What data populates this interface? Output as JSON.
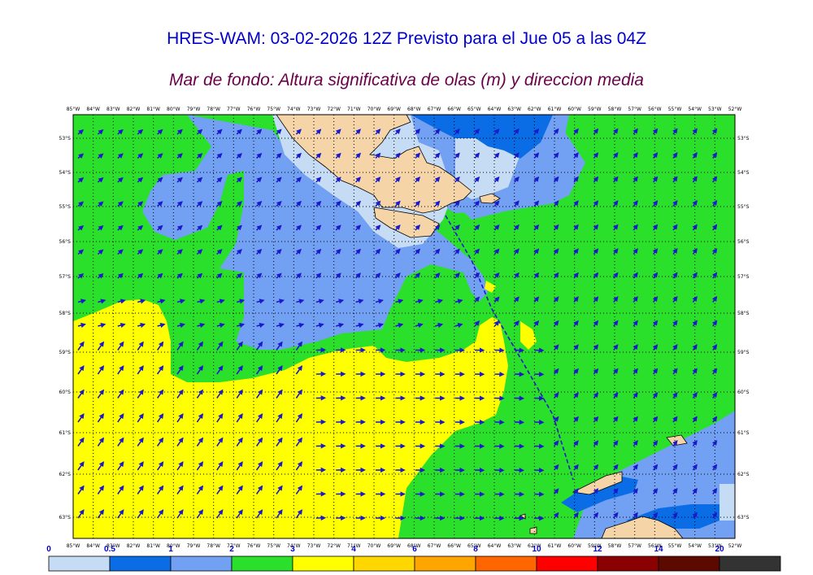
{
  "header": {
    "title": "HRES-WAM: 03-02-2026 12Z Previsto para el Jue 05 a las 04Z",
    "subtitle": "Mar de fondo: Altura significativa de olas (m) y direccion media"
  },
  "map": {
    "lon_labels": [
      "85°W",
      "84°W",
      "83°W",
      "82°W",
      "81°W",
      "80°W",
      "79°W",
      "78°W",
      "77°W",
      "76°W",
      "75°W",
      "74°W",
      "73°W",
      "72°W",
      "71°W",
      "70°W",
      "69°W",
      "68°W",
      "67°W",
      "66°W",
      "65°W",
      "64°W",
      "63°W",
      "62°W",
      "61°W",
      "60°W",
      "59°W",
      "58°W",
      "57°W",
      "56°W",
      "55°W",
      "54°W",
      "53°W",
      "52°W"
    ],
    "lat_labels": [
      "53°S",
      "54°S",
      "55°S",
      "56°S",
      "57°S",
      "58°S",
      "59°S",
      "60°S",
      "61°S",
      "62°S",
      "63°S"
    ],
    "colors": {
      "light_blue": "#c6dcf5",
      "blue": "#0a6de6",
      "mid_blue": "#72a0f2",
      "green": "#2be02b",
      "yellow": "#ffff00",
      "land": "#f5d5a8",
      "arrow": "#1a1acc",
      "route": "#1a1acc"
    }
  },
  "colorbar": {
    "labels": [
      "0",
      "0.5",
      "1",
      "2",
      "3",
      "4",
      "6",
      "8",
      "10",
      "12",
      "14",
      "20"
    ],
    "colors": [
      "#c6dcf5",
      "#0a6de6",
      "#72a0f2",
      "#2be02b",
      "#ffff00",
      "#ffd700",
      "#ffa500",
      "#ff6600",
      "#ff0000",
      "#8b0000",
      "#5c0a00",
      "#333333"
    ]
  }
}
